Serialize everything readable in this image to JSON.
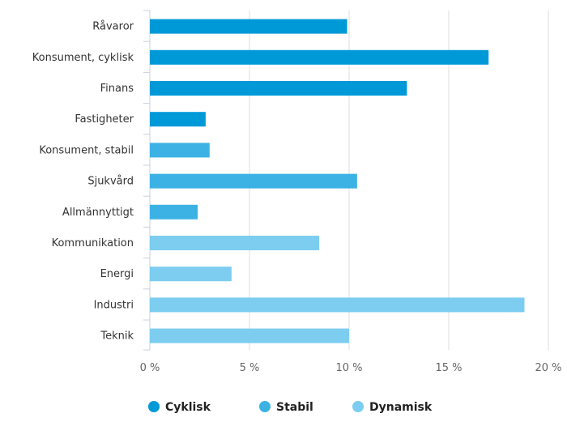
{
  "chart_data": {
    "type": "bar",
    "orientation": "horizontal",
    "categories": [
      "Råvaror",
      "Konsument, cyklisk",
      "Finans",
      "Fastigheter",
      "Konsument, stabil",
      "Sjukvård",
      "Allmännyttigt",
      "Kommunikation",
      "Energi",
      "Industri",
      "Teknik"
    ],
    "values": [
      9.9,
      17.0,
      12.9,
      2.8,
      3.0,
      10.4,
      2.4,
      8.5,
      4.1,
      18.8,
      10.0
    ],
    "groups": [
      "Cyklisk",
      "Cyklisk",
      "Cyklisk",
      "Cyklisk",
      "Stabil",
      "Stabil",
      "Stabil",
      "Dynamisk",
      "Dynamisk",
      "Dynamisk",
      "Dynamisk"
    ],
    "series": [
      {
        "name": "Cyklisk",
        "color": "#0099d8"
      },
      {
        "name": "Stabil",
        "color": "#3cb2e4"
      },
      {
        "name": "Dynamisk",
        "color": "#7ccdf0"
      }
    ],
    "xlim": [
      0,
      20
    ],
    "xticks": [
      0,
      5,
      10,
      15,
      20
    ],
    "xtick_labels": [
      "0 %",
      "5 %",
      "10 %",
      "15 %",
      "20 %"
    ],
    "grid": true,
    "legend_position": "bottom-center"
  }
}
